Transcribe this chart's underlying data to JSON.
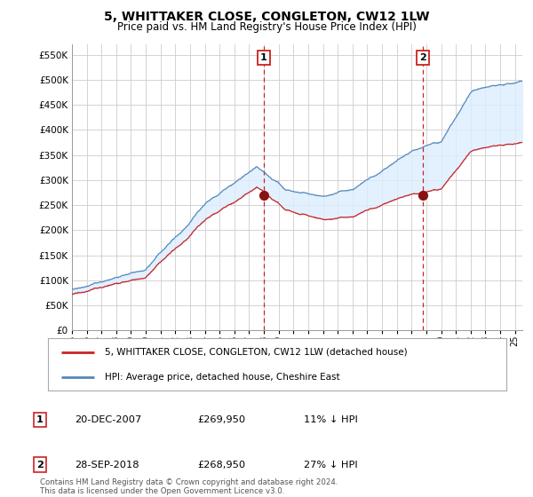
{
  "title": "5, WHITTAKER CLOSE, CONGLETON, CW12 1LW",
  "subtitle": "Price paid vs. HM Land Registry's House Price Index (HPI)",
  "ylim": [
    0,
    570000
  ],
  "yticks": [
    0,
    50000,
    100000,
    150000,
    200000,
    250000,
    300000,
    350000,
    400000,
    450000,
    500000,
    550000
  ],
  "ytick_labels": [
    "£0",
    "£50K",
    "£100K",
    "£150K",
    "£200K",
    "£250K",
    "£300K",
    "£350K",
    "£400K",
    "£450K",
    "£500K",
    "£550K"
  ],
  "hpi_color": "#5588bb",
  "hpi_fill_color": "#ddeeff",
  "sale_color": "#cc2222",
  "marker_color": "#881111",
  "vline_color": "#cc2222",
  "sale1_x": 2007.97,
  "sale1_y": 269950,
  "sale2_x": 2018.75,
  "sale2_y": 268950,
  "legend_entries": [
    "5, WHITTAKER CLOSE, CONGLETON, CW12 1LW (detached house)",
    "HPI: Average price, detached house, Cheshire East"
  ],
  "ann1": [
    "1",
    "20-DEC-2007",
    "£269,950",
    "11% ↓ HPI"
  ],
  "ann2": [
    "2",
    "28-SEP-2018",
    "£268,950",
    "27% ↓ HPI"
  ],
  "footer": [
    "Contains HM Land Registry data © Crown copyright and database right 2024.",
    "This data is licensed under the Open Government Licence v3.0."
  ],
  "background_color": "#ffffff",
  "grid_color": "#cccccc",
  "xmin": 1995,
  "xmax": 2025.5
}
